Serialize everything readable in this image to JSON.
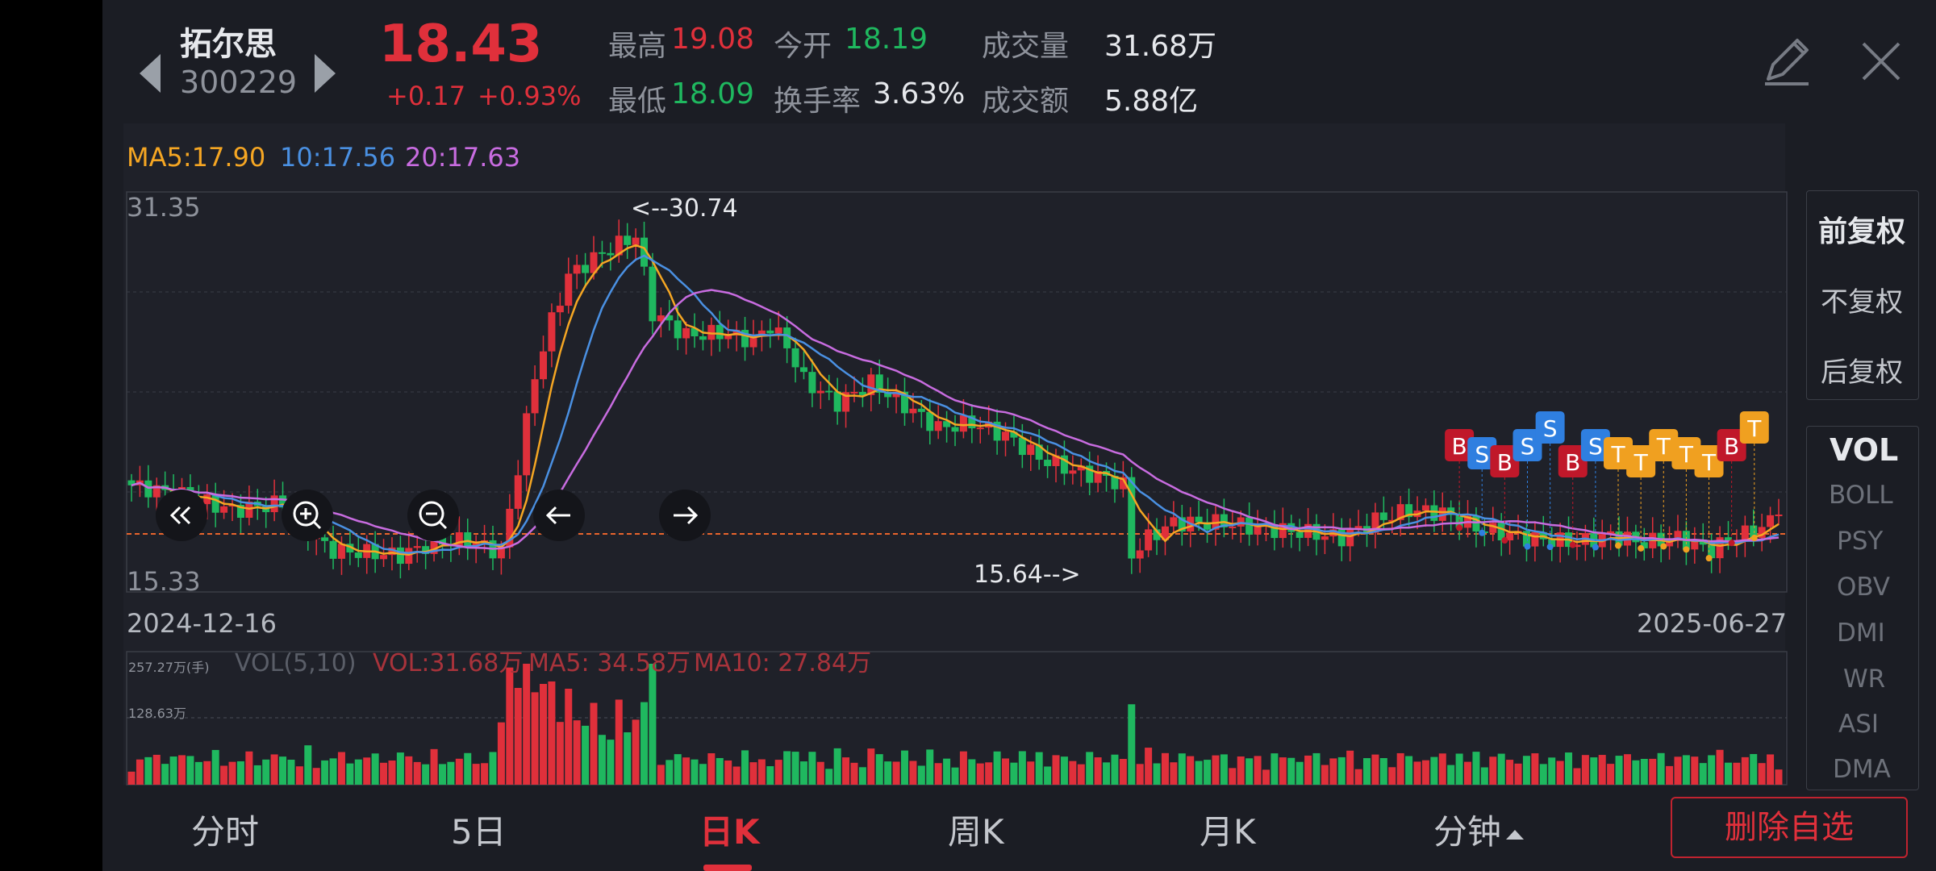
{
  "header": {
    "stock_name": "拓尔思",
    "stock_code": "300229",
    "price": "18.43",
    "change": "+0.17",
    "change_pct": "+0.93%",
    "stats": {
      "high_label": "最高",
      "high_value": "19.08",
      "open_label": "今开",
      "open_value": "18.19",
      "volume_label": "成交量",
      "volume_value": "31.68万",
      "low_label": "最低",
      "low_value": "18.09",
      "turnover_label": "换手率",
      "turnover_value": "3.63%",
      "amount_label": "成交额",
      "amount_value": "5.88亿"
    }
  },
  "ma_legend": {
    "ma5": "MA5:17.90",
    "ma10": "10:17.56",
    "ma20": "20:17.63"
  },
  "price_axis": {
    "top": "31.35",
    "bottom": "15.33"
  },
  "annotations": {
    "max": "<--30.74",
    "min": "15.64-->"
  },
  "date_axis": {
    "start": "2024-12-16",
    "end": "2025-06-27"
  },
  "vol_panel": {
    "scale_top": "257.27万(手)",
    "scale_mid": "128.63万",
    "legend_name": "VOL(5,10)",
    "legend_vol": "VOL:31.68万",
    "legend_ma5": "MA5: 34.58万",
    "legend_ma10": "MA10: 27.84万"
  },
  "adjust_options": [
    "前复权",
    "不复权",
    "后复权"
  ],
  "indicators": [
    "VOL",
    "BOLL",
    "PSY",
    "OBV",
    "DMI",
    "WR",
    "ASI",
    "DMA"
  ],
  "tabs": [
    "分时",
    "5日",
    "日K",
    "周K",
    "月K",
    "分钟"
  ],
  "delete_button": "删除自选",
  "trade_markers": [
    "B",
    "S",
    "B",
    "S",
    "S",
    "B",
    "S",
    "T",
    "T",
    "T",
    "T",
    "T",
    "B",
    "T"
  ],
  "colors": {
    "up": "#e0303b",
    "down": "#1fb85f",
    "ma5": "#f5a623",
    "ma10": "#4a90e2",
    "ma20": "#c86ce0",
    "background": "#1b1d24"
  },
  "chart_data": {
    "type": "candlestick",
    "ylim": [
      15.33,
      31.35
    ],
    "last_close": 18.43,
    "high": 30.74,
    "low": 15.64
  }
}
